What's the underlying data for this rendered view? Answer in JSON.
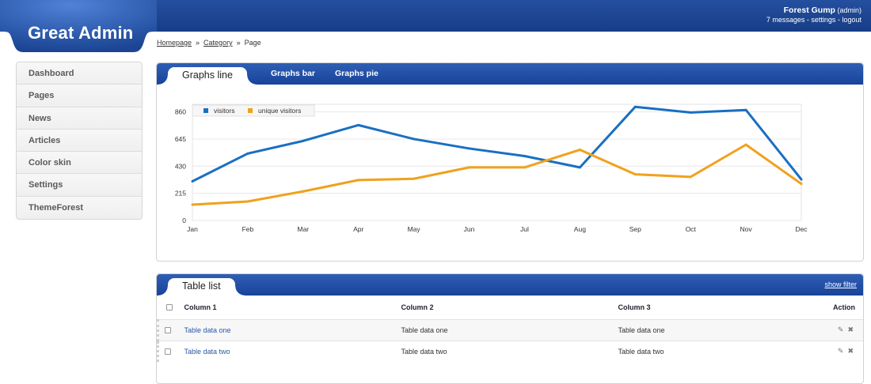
{
  "header": {
    "logo": "Great Admin",
    "user_name": "Forest Gump",
    "user_role": "(admin)",
    "messages": "7 messages",
    "settings": "settings",
    "logout": "logout",
    "sep": "-"
  },
  "breadcrumb": {
    "items": [
      "Homepage",
      "Category",
      "Page"
    ],
    "sep": "»"
  },
  "sidebar": {
    "items": [
      {
        "label": "Dashboard"
      },
      {
        "label": "Pages"
      },
      {
        "label": "News"
      },
      {
        "label": "Articles"
      },
      {
        "label": "Color skin"
      },
      {
        "label": "Settings"
      },
      {
        "label": "ThemeForest"
      }
    ]
  },
  "graphs_panel": {
    "tabs": [
      {
        "label": "Graphs line",
        "active": true
      },
      {
        "label": "Graphs bar"
      },
      {
        "label": "Graphs pie"
      }
    ]
  },
  "chart_data": {
    "type": "line",
    "categories": [
      "Jan",
      "Feb",
      "Mar",
      "Apr",
      "May",
      "Jun",
      "Jul",
      "Aug",
      "Sep",
      "Oct",
      "Nov",
      "Dec"
    ],
    "series": [
      {
        "name": "visitors",
        "color": "#1a6fc2",
        "values": [
          310,
          530,
          630,
          755,
          645,
          570,
          510,
          420,
          900,
          855,
          875,
          325
        ]
      },
      {
        "name": "unique visitors",
        "color": "#f0a11c",
        "values": [
          125,
          150,
          230,
          320,
          330,
          420,
          420,
          560,
          365,
          345,
          600,
          290
        ]
      }
    ],
    "yticks": [
      0,
      215,
      430,
      645,
      860
    ],
    "ylim": [
      0,
      920
    ],
    "grid": true,
    "legend": "top-left"
  },
  "table_panel": {
    "title": "Table list",
    "show_filter": "show filter",
    "columns": [
      "Column 1",
      "Column 2",
      "Column 3",
      "Action"
    ],
    "rows": [
      [
        "Table data one",
        "Table data one",
        "Table data one"
      ],
      [
        "Table data two",
        "Table data two",
        "Table data two"
      ]
    ]
  },
  "colors": {
    "header": "#1f4a9a",
    "visitors": "#1a6fc2",
    "unique_visitors": "#f0a11c"
  }
}
